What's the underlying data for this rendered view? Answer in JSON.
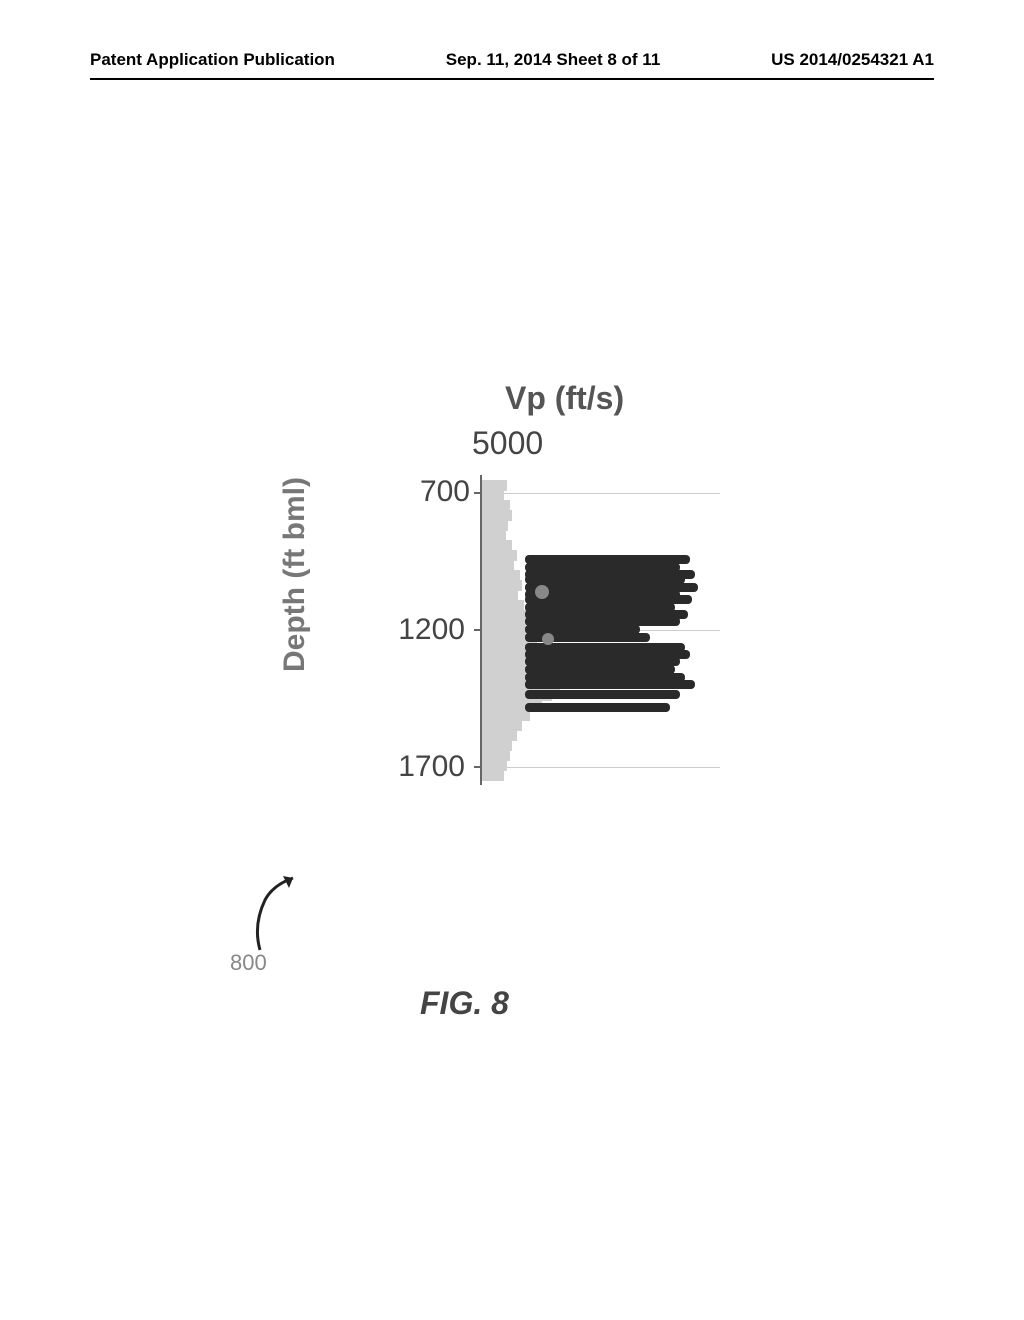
{
  "header": {
    "left": "Patent Application Publication",
    "center": "Sep. 11, 2014  Sheet 8 of 11",
    "right": "US 2014/0254321 A1"
  },
  "chart": {
    "type": "well-log",
    "x_label": "Vp (ft/s)",
    "x_tick": "5000",
    "y_label": "Depth (ft bml)",
    "y_ticks": [
      "700",
      "1200",
      "1700"
    ],
    "y_tick_positions": [
      18,
      155,
      292
    ],
    "grid_positions": [
      18,
      155,
      292
    ],
    "colors": {
      "light_trace": "#d0d0d0",
      "mid_trace": "#888888",
      "dark_trace": "#2a2a2a",
      "axis": "#666666",
      "grid": "#cccccc",
      "text": "#444444",
      "label": "#777777"
    },
    "light_series": [
      {
        "d": 5,
        "v": 25
      },
      {
        "d": 15,
        "v": 22
      },
      {
        "d": 25,
        "v": 28
      },
      {
        "d": 35,
        "v": 30
      },
      {
        "d": 45,
        "v": 26
      },
      {
        "d": 55,
        "v": 24
      },
      {
        "d": 65,
        "v": 30
      },
      {
        "d": 75,
        "v": 35
      },
      {
        "d": 85,
        "v": 32
      },
      {
        "d": 95,
        "v": 38
      },
      {
        "d": 105,
        "v": 40
      },
      {
        "d": 115,
        "v": 36
      },
      {
        "d": 125,
        "v": 42
      },
      {
        "d": 135,
        "v": 48
      },
      {
        "d": 145,
        "v": 44
      },
      {
        "d": 155,
        "v": 50
      },
      {
        "d": 165,
        "v": 55
      },
      {
        "d": 175,
        "v": 65
      },
      {
        "d": 185,
        "v": 75
      },
      {
        "d": 195,
        "v": 82
      },
      {
        "d": 205,
        "v": 78
      },
      {
        "d": 215,
        "v": 70
      },
      {
        "d": 225,
        "v": 60
      },
      {
        "d": 235,
        "v": 48
      },
      {
        "d": 245,
        "v": 40
      },
      {
        "d": 255,
        "v": 35
      },
      {
        "d": 265,
        "v": 30
      },
      {
        "d": 275,
        "v": 28
      },
      {
        "d": 285,
        "v": 25
      },
      {
        "d": 295,
        "v": 22
      }
    ],
    "dark_bars": [
      {
        "d": 80,
        "v": 210
      },
      {
        "d": 88,
        "v": 200
      },
      {
        "d": 95,
        "v": 215
      },
      {
        "d": 100,
        "v": 205
      },
      {
        "d": 108,
        "v": 218
      },
      {
        "d": 115,
        "v": 200
      },
      {
        "d": 120,
        "v": 212
      },
      {
        "d": 128,
        "v": 195
      },
      {
        "d": 135,
        "v": 208
      },
      {
        "d": 142,
        "v": 200
      },
      {
        "d": 150,
        "v": 160
      },
      {
        "d": 158,
        "v": 170
      },
      {
        "d": 168,
        "v": 205
      },
      {
        "d": 175,
        "v": 210
      },
      {
        "d": 182,
        "v": 200
      },
      {
        "d": 190,
        "v": 195
      },
      {
        "d": 198,
        "v": 205
      },
      {
        "d": 205,
        "v": 215
      },
      {
        "d": 215,
        "v": 200
      },
      {
        "d": 228,
        "v": 190
      }
    ],
    "mid_spots": [
      {
        "d": 110,
        "v": 55,
        "s": 14
      },
      {
        "d": 158,
        "v": 62,
        "s": 12
      }
    ]
  },
  "callout": {
    "number": "800"
  },
  "caption": "FIG. 8"
}
